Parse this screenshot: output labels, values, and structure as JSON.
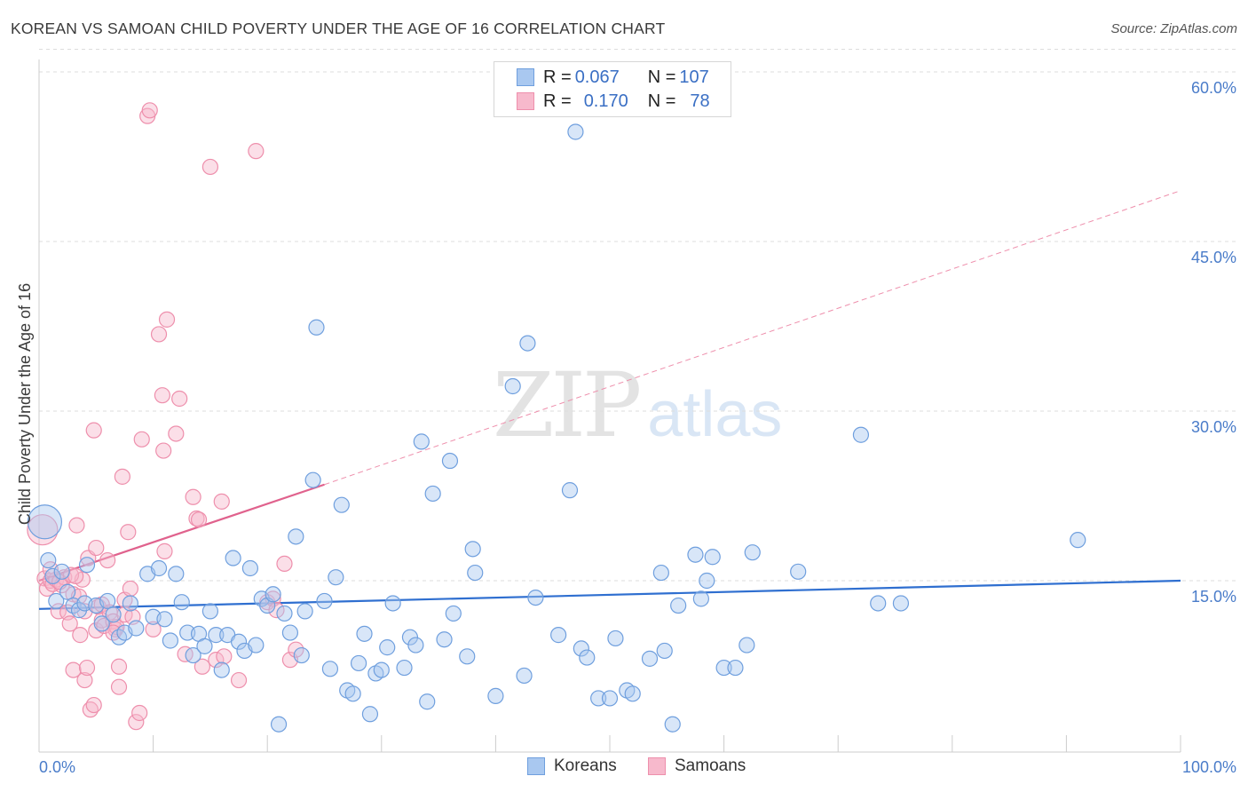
{
  "title": "KOREAN VS SAMOAN CHILD POVERTY UNDER THE AGE OF 16 CORRELATION CHART",
  "source": "Source: ZipAtlas.com",
  "watermark": {
    "zip": "ZIP",
    "atlas": "atlas"
  },
  "legend": {
    "rows": [
      {
        "r_label": "R = ",
        "r_value": "0.067",
        "n_label": "N = ",
        "n_value": "107"
      },
      {
        "r_label": "R = ",
        "r_value": "0.170",
        "n_label": "N = ",
        "n_value": "78"
      }
    ]
  },
  "bottom_legend": {
    "koreans": "Koreans",
    "samoans": "Samoans"
  },
  "colors": {
    "korean_fill": "#a9c8f0",
    "korean_stroke": "#6f9fde",
    "korean_line": "#2f6fd0",
    "samoan_fill": "#f7b9cc",
    "samoan_stroke": "#ee8fac",
    "samoan_line": "#e0628d",
    "grid": "#dddddd",
    "tick_text": "#4a7cc9"
  },
  "chart_data": {
    "type": "scatter",
    "title": "KOREAN VS SAMOAN CHILD POVERTY UNDER THE AGE OF 16 CORRELATION CHART",
    "xlabel": "",
    "ylabel": "Child Poverty Under the Age of 16",
    "xlim": [
      0,
      100
    ],
    "ylim": [
      0,
      62
    ],
    "x_tick_labels": [
      {
        "value": 0,
        "label": "0.0%"
      },
      {
        "value": 100,
        "label": "100.0%"
      }
    ],
    "y_tick_labels": [
      {
        "value": 15,
        "label": "15.0%"
      },
      {
        "value": 30,
        "label": "30.0%"
      },
      {
        "value": 45,
        "label": "45.0%"
      },
      {
        "value": 60,
        "label": "60.0%"
      }
    ],
    "grid": true,
    "legend_position": "top-center",
    "series": [
      {
        "name": "Koreans",
        "R": 0.067,
        "N": 107,
        "trend": {
          "x": [
            0,
            100
          ],
          "y": [
            12.5,
            15.0
          ],
          "style": "solid"
        },
        "points": [
          {
            "x": 0.5,
            "y": 20.2,
            "s": "large"
          },
          {
            "x": 0.8,
            "y": 16.8
          },
          {
            "x": 1.2,
            "y": 15.4
          },
          {
            "x": 1.5,
            "y": 13.2
          },
          {
            "x": 2.0,
            "y": 15.8
          },
          {
            "x": 2.5,
            "y": 14.0
          },
          {
            "x": 3.0,
            "y": 12.8
          },
          {
            "x": 3.5,
            "y": 12.4
          },
          {
            "x": 4.0,
            "y": 13.0
          },
          {
            "x": 4.2,
            "y": 16.4
          },
          {
            "x": 5.0,
            "y": 12.8
          },
          {
            "x": 5.5,
            "y": 11.2
          },
          {
            "x": 6.0,
            "y": 13.2
          },
          {
            "x": 6.5,
            "y": 12.0
          },
          {
            "x": 7.0,
            "y": 10.0
          },
          {
            "x": 7.5,
            "y": 10.4
          },
          {
            "x": 8.0,
            "y": 13.0
          },
          {
            "x": 8.5,
            "y": 10.8
          },
          {
            "x": 9.5,
            "y": 15.6
          },
          {
            "x": 10.0,
            "y": 11.8
          },
          {
            "x": 10.5,
            "y": 16.1
          },
          {
            "x": 11.0,
            "y": 11.6
          },
          {
            "x": 11.5,
            "y": 9.7
          },
          {
            "x": 12.0,
            "y": 15.6
          },
          {
            "x": 12.5,
            "y": 13.1
          },
          {
            "x": 13.0,
            "y": 10.4
          },
          {
            "x": 13.5,
            "y": 8.4
          },
          {
            "x": 14.0,
            "y": 10.3
          },
          {
            "x": 14.5,
            "y": 9.2
          },
          {
            "x": 15.0,
            "y": 12.3
          },
          {
            "x": 15.5,
            "y": 10.2
          },
          {
            "x": 16.0,
            "y": 7.1
          },
          {
            "x": 16.5,
            "y": 10.2
          },
          {
            "x": 17.0,
            "y": 17.0
          },
          {
            "x": 17.5,
            "y": 9.6
          },
          {
            "x": 18.0,
            "y": 8.8
          },
          {
            "x": 18.5,
            "y": 16.1
          },
          {
            "x": 19.0,
            "y": 9.3
          },
          {
            "x": 19.5,
            "y": 13.4
          },
          {
            "x": 20.0,
            "y": 12.8
          },
          {
            "x": 20.5,
            "y": 13.8
          },
          {
            "x": 21.0,
            "y": 2.3
          },
          {
            "x": 21.5,
            "y": 12.1
          },
          {
            "x": 22.0,
            "y": 10.4
          },
          {
            "x": 22.5,
            "y": 18.9
          },
          {
            "x": 23.0,
            "y": 8.4
          },
          {
            "x": 23.3,
            "y": 12.3
          },
          {
            "x": 24.0,
            "y": 23.9
          },
          {
            "x": 24.3,
            "y": 37.4
          },
          {
            "x": 25.0,
            "y": 13.2
          },
          {
            "x": 25.5,
            "y": 7.2
          },
          {
            "x": 26.0,
            "y": 15.3
          },
          {
            "x": 26.5,
            "y": 21.7
          },
          {
            "x": 27.0,
            "y": 5.3
          },
          {
            "x": 27.5,
            "y": 5.0
          },
          {
            "x": 28.0,
            "y": 7.7
          },
          {
            "x": 28.5,
            "y": 10.3
          },
          {
            "x": 29.0,
            "y": 3.2
          },
          {
            "x": 29.5,
            "y": 6.8
          },
          {
            "x": 30.0,
            "y": 7.1
          },
          {
            "x": 30.5,
            "y": 9.1
          },
          {
            "x": 31.0,
            "y": 13.0
          },
          {
            "x": 32.0,
            "y": 7.3
          },
          {
            "x": 32.5,
            "y": 10.0
          },
          {
            "x": 33.0,
            "y": 9.3
          },
          {
            "x": 33.5,
            "y": 27.3
          },
          {
            "x": 34.0,
            "y": 4.3
          },
          {
            "x": 34.5,
            "y": 22.7
          },
          {
            "x": 35.5,
            "y": 9.8
          },
          {
            "x": 36.0,
            "y": 25.6
          },
          {
            "x": 36.3,
            "y": 12.1
          },
          {
            "x": 37.5,
            "y": 8.3
          },
          {
            "x": 38.0,
            "y": 17.8
          },
          {
            "x": 38.2,
            "y": 15.7
          },
          {
            "x": 40.0,
            "y": 4.8
          },
          {
            "x": 41.5,
            "y": 32.2
          },
          {
            "x": 42.5,
            "y": 6.6
          },
          {
            "x": 42.8,
            "y": 36.0
          },
          {
            "x": 43.5,
            "y": 13.5
          },
          {
            "x": 45.5,
            "y": 10.2
          },
          {
            "x": 46.5,
            "y": 23.0
          },
          {
            "x": 47.0,
            "y": 54.7
          },
          {
            "x": 47.5,
            "y": 9.0
          },
          {
            "x": 48.0,
            "y": 8.2
          },
          {
            "x": 49.0,
            "y": 4.6
          },
          {
            "x": 50.0,
            "y": 4.6
          },
          {
            "x": 50.5,
            "y": 9.9
          },
          {
            "x": 51.5,
            "y": 5.3
          },
          {
            "x": 52.0,
            "y": 5.0
          },
          {
            "x": 53.5,
            "y": 8.1
          },
          {
            "x": 54.5,
            "y": 15.7
          },
          {
            "x": 54.8,
            "y": 8.8
          },
          {
            "x": 55.5,
            "y": 2.3
          },
          {
            "x": 56.0,
            "y": 12.8
          },
          {
            "x": 57.5,
            "y": 17.3
          },
          {
            "x": 58.0,
            "y": 13.4
          },
          {
            "x": 58.5,
            "y": 15.0
          },
          {
            "x": 59.0,
            "y": 17.1
          },
          {
            "x": 60.0,
            "y": 7.3
          },
          {
            "x": 61.0,
            "y": 7.3
          },
          {
            "x": 62.0,
            "y": 9.3
          },
          {
            "x": 62.5,
            "y": 17.5
          },
          {
            "x": 66.5,
            "y": 15.8
          },
          {
            "x": 72.0,
            "y": 27.9
          },
          {
            "x": 73.5,
            "y": 13.0
          },
          {
            "x": 75.5,
            "y": 13.0
          },
          {
            "x": 91.0,
            "y": 18.6
          }
        ]
      },
      {
        "name": "Samoans",
        "R": 0.17,
        "N": 78,
        "trend": {
          "x": [
            0,
            25,
            100
          ],
          "y": [
            15.0,
            23.5,
            49.5
          ],
          "style": "solid-then-dashed",
          "solid_until_x": 25
        },
        "points": [
          {
            "x": 0.3,
            "y": 19.5,
            "s": "large"
          },
          {
            "x": 0.5,
            "y": 15.2
          },
          {
            "x": 0.7,
            "y": 14.3
          },
          {
            "x": 1.0,
            "y": 15.0
          },
          {
            "x": 1.2,
            "y": 14.7
          },
          {
            "x": 1.5,
            "y": 15.1
          },
          {
            "x": 1.7,
            "y": 12.3
          },
          {
            "x": 2.0,
            "y": 14.6
          },
          {
            "x": 2.2,
            "y": 15.3
          },
          {
            "x": 2.5,
            "y": 12.2
          },
          {
            "x": 2.7,
            "y": 11.2
          },
          {
            "x": 3.0,
            "y": 7.1
          },
          {
            "x": 3.0,
            "y": 13.8
          },
          {
            "x": 3.3,
            "y": 19.9
          },
          {
            "x": 3.5,
            "y": 13.6
          },
          {
            "x": 3.6,
            "y": 10.2
          },
          {
            "x": 3.8,
            "y": 15.1
          },
          {
            "x": 4.0,
            "y": 12.3
          },
          {
            "x": 4.0,
            "y": 6.2
          },
          {
            "x": 4.2,
            "y": 7.3
          },
          {
            "x": 4.3,
            "y": 17.0
          },
          {
            "x": 4.5,
            "y": 3.6
          },
          {
            "x": 4.8,
            "y": 4.0
          },
          {
            "x": 4.8,
            "y": 28.3
          },
          {
            "x": 5.0,
            "y": 10.6
          },
          {
            "x": 5.0,
            "y": 17.9
          },
          {
            "x": 5.2,
            "y": 12.7
          },
          {
            "x": 5.5,
            "y": 11.5
          },
          {
            "x": 5.5,
            "y": 12.9
          },
          {
            "x": 5.7,
            "y": 11.0
          },
          {
            "x": 6.0,
            "y": 16.8
          },
          {
            "x": 6.2,
            "y": 12.2
          },
          {
            "x": 6.5,
            "y": 11.4
          },
          {
            "x": 6.7,
            "y": 10.7
          },
          {
            "x": 6.8,
            "y": 10.9
          },
          {
            "x": 7.0,
            "y": 5.6
          },
          {
            "x": 7.0,
            "y": 7.4
          },
          {
            "x": 7.3,
            "y": 24.2
          },
          {
            "x": 7.5,
            "y": 13.3
          },
          {
            "x": 7.5,
            "y": 12.0
          },
          {
            "x": 7.8,
            "y": 19.3
          },
          {
            "x": 8.0,
            "y": 14.3
          },
          {
            "x": 8.2,
            "y": 11.8
          },
          {
            "x": 8.5,
            "y": 2.5
          },
          {
            "x": 8.8,
            "y": 3.3
          },
          {
            "x": 9.0,
            "y": 27.5
          },
          {
            "x": 9.5,
            "y": 56.1
          },
          {
            "x": 9.7,
            "y": 56.6
          },
          {
            "x": 10.0,
            "y": 10.7
          },
          {
            "x": 10.5,
            "y": 36.8
          },
          {
            "x": 10.8,
            "y": 31.4
          },
          {
            "x": 10.9,
            "y": 26.5
          },
          {
            "x": 11.0,
            "y": 17.6
          },
          {
            "x": 11.2,
            "y": 38.1
          },
          {
            "x": 12.0,
            "y": 28.0
          },
          {
            "x": 12.3,
            "y": 31.1
          },
          {
            "x": 12.8,
            "y": 8.5
          },
          {
            "x": 13.5,
            "y": 22.4
          },
          {
            "x": 13.8,
            "y": 20.5
          },
          {
            "x": 14.0,
            "y": 20.4
          },
          {
            "x": 14.3,
            "y": 7.4
          },
          {
            "x": 15.0,
            "y": 51.6
          },
          {
            "x": 15.5,
            "y": 8.0
          },
          {
            "x": 16.0,
            "y": 22.0
          },
          {
            "x": 16.2,
            "y": 8.3
          },
          {
            "x": 17.5,
            "y": 6.2
          },
          {
            "x": 19.0,
            "y": 53.0
          },
          {
            "x": 20.0,
            "y": 13.1
          },
          {
            "x": 20.5,
            "y": 13.4
          },
          {
            "x": 20.8,
            "y": 12.4
          },
          {
            "x": 21.5,
            "y": 16.5
          },
          {
            "x": 22.0,
            "y": 8.0
          },
          {
            "x": 22.5,
            "y": 8.9
          },
          {
            "x": 1.8,
            "y": 14.9
          },
          {
            "x": 2.8,
            "y": 15.5
          },
          {
            "x": 1.0,
            "y": 16.0
          },
          {
            "x": 3.2,
            "y": 15.4
          },
          {
            "x": 6.5,
            "y": 10.4
          }
        ]
      }
    ]
  }
}
